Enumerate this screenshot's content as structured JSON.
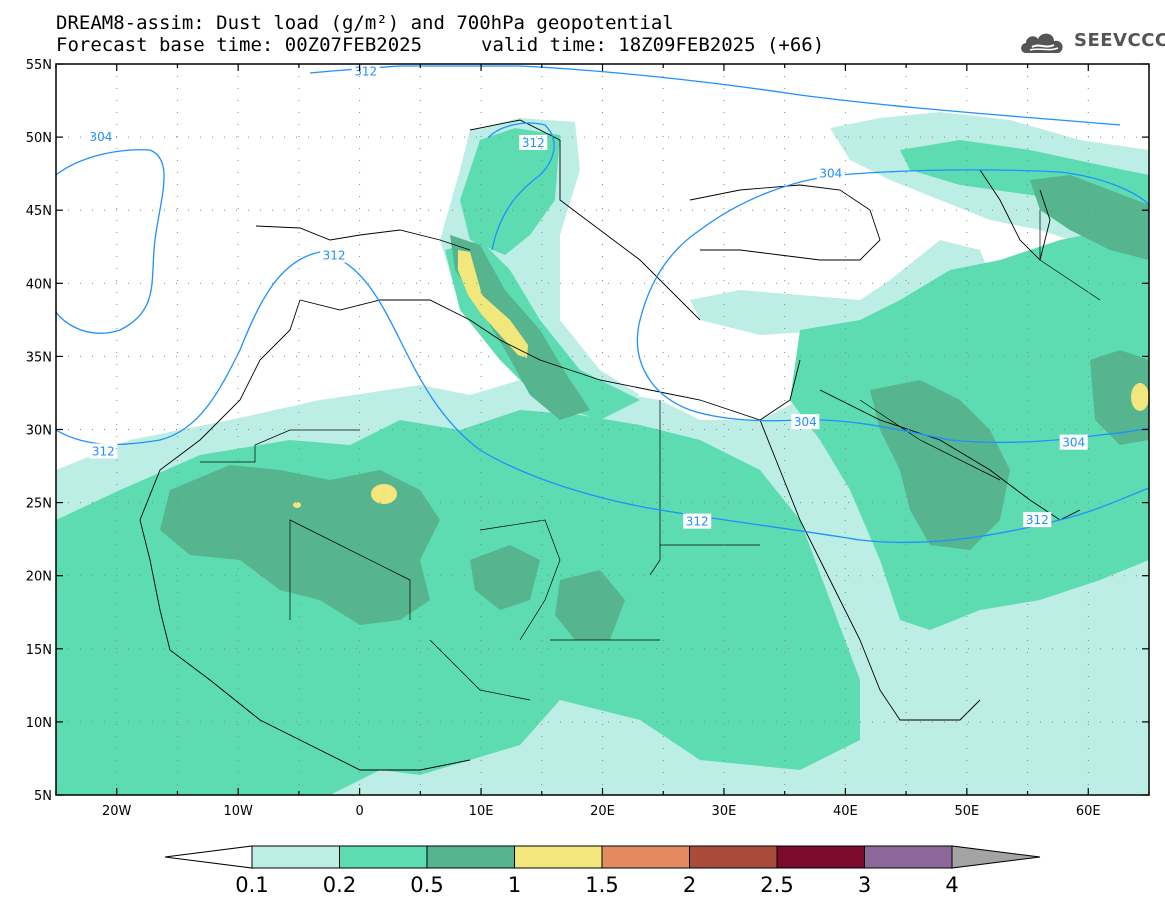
{
  "header": {
    "title_line1": "DREAM8-assim: Dust load (g/m²) and 700hPa geopotential",
    "base_time": "Forecast base time: 00Z07FEB2025",
    "valid_time": "valid time: 18Z09FEB2025 (+66)"
  },
  "logo": {
    "text": "SEEVCCC",
    "icon": "cloud-icon"
  },
  "axes": {
    "lat_labels": [
      "55N",
      "50N",
      "45N",
      "40N",
      "35N",
      "30N",
      "25N",
      "20N",
      "15N",
      "10N",
      "5N"
    ],
    "lon_labels": [
      "20W",
      "10W",
      "0",
      "10E",
      "20E",
      "30E",
      "40E",
      "50E",
      "60E"
    ],
    "lat_values": [
      55,
      50,
      45,
      40,
      35,
      30,
      25,
      20,
      15,
      10,
      5
    ],
    "lon_values": [
      -20,
      -10,
      0,
      10,
      20,
      30,
      40,
      50,
      60
    ],
    "lat_range": [
      5,
      55
    ],
    "lon_range": [
      -25,
      65
    ]
  },
  "contour_labels": [
    {
      "text": "312",
      "lon": 0.5,
      "lat": 54.5
    },
    {
      "text": "304",
      "lon": -21.3,
      "lat": 50.0
    },
    {
      "text": "312",
      "lon": 14.3,
      "lat": 49.6
    },
    {
      "text": "312",
      "lon": -2.1,
      "lat": 41.9
    },
    {
      "text": "304",
      "lon": 38.8,
      "lat": 47.5
    },
    {
      "text": "312",
      "lon": -21.1,
      "lat": 28.5
    },
    {
      "text": "304",
      "lon": 36.7,
      "lat": 30.5
    },
    {
      "text": "304",
      "lon": 58.8,
      "lat": 29.1
    },
    {
      "text": "312",
      "lon": 27.8,
      "lat": 23.7
    },
    {
      "text": "312",
      "lon": 55.8,
      "lat": 23.8
    }
  ],
  "colorbar": {
    "levels": [
      "0.1",
      "0.2",
      "0.5",
      "1",
      "1.5",
      "2",
      "2.5",
      "3",
      "4"
    ],
    "colors": [
      "#bdeee6",
      "#5ddcb2",
      "#56b48f",
      "#f2e77c",
      "#e38a62",
      "#a94b39",
      "#7c0a2c",
      "#8c6799"
    ],
    "under_color": "#ffffff",
    "over_color": "#a4a4a4"
  }
}
